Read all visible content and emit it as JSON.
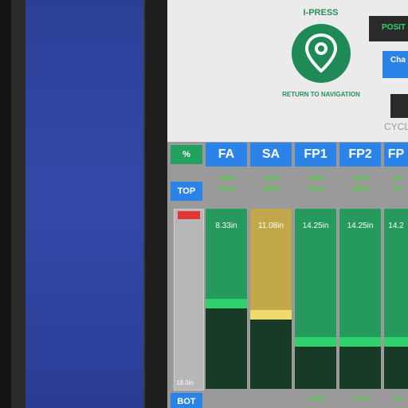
{
  "header": {
    "title": "I-PRESS",
    "return_label": "RETURN TO NAVIGATION",
    "position_label": "POSIT",
    "change_label": "Cha",
    "cycle_label": "CYCL",
    "pin_icon": "location-pin-icon"
  },
  "controls": {
    "percent_label": "%",
    "top_label": "TOP",
    "bot_label": "BOT"
  },
  "tabs": [
    {
      "label": "FA"
    },
    {
      "label": "SA"
    },
    {
      "label": "FP1"
    },
    {
      "label": "FP2"
    },
    {
      "label": "FP"
    }
  ],
  "reference": {
    "label": "18.0in"
  },
  "columns": [
    {
      "value": "8.33in",
      "level": 0.445,
      "upper_color": "#259a5c",
      "bar_color": "#2fd36b",
      "lower_color": "#173a26"
    },
    {
      "value": "11.08in",
      "level": 0.385,
      "upper_color": "#c2a84a",
      "bar_color": "#f0d86a",
      "lower_color": "#173a26"
    },
    {
      "value": "14.25in",
      "level": 0.235,
      "upper_color": "#259a5c",
      "bar_color": "#2fd36b",
      "lower_color": "#173a26"
    },
    {
      "value": "14.25in",
      "level": 0.235,
      "upper_color": "#259a5c",
      "bar_color": "#2fd36b",
      "lower_color": "#173a26"
    },
    {
      "value": "14.2",
      "level": 0.235,
      "upper_color": "#259a5c",
      "bar_color": "#2fd36b",
      "lower_color": "#173a26"
    }
  ],
  "colors": {
    "accent_blue": "#2b83e8",
    "accent_green": "#24a15e"
  }
}
